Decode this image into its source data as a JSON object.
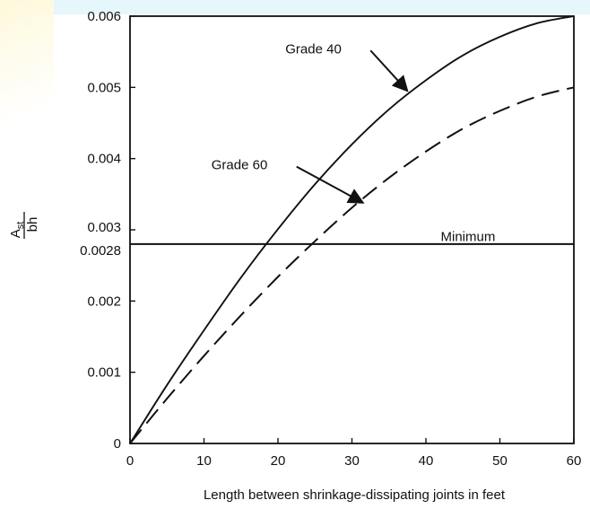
{
  "colors": {
    "line": "#111111",
    "band": "#e6f7fb",
    "watermark": "#f7e04a"
  },
  "chart_data": {
    "type": "line",
    "xlabel": "Length between shrinkage-dissipating joints in feet",
    "ylabel_numerator": "A",
    "ylabel_numerator_sub": "st",
    "ylabel_denominator": "bh",
    "xlim": [
      0,
      60
    ],
    "ylim": [
      0,
      0.006
    ],
    "x_ticks": [
      0,
      10,
      20,
      30,
      40,
      50,
      60
    ],
    "x_tick_labels": [
      "0",
      "10",
      "20",
      "30",
      "40",
      "50",
      "60"
    ],
    "y_ticks": [
      0,
      0.001,
      0.002,
      0.0028,
      0.003,
      0.004,
      0.005,
      0.006
    ],
    "y_tick_labels": [
      "0",
      "0.001",
      "0.002",
      "0.0028",
      "0.003",
      "0.004",
      "0.005",
      "0.006"
    ],
    "grid": false,
    "series": [
      {
        "name": "Grade 40",
        "style": "solid",
        "x": [
          0,
          5,
          10,
          15,
          20,
          25,
          30,
          35,
          40,
          45,
          50,
          55,
          60
        ],
        "y": [
          0,
          0.00082,
          0.00159,
          0.00233,
          0.00301,
          0.00364,
          0.0042,
          0.00469,
          0.0051,
          0.00545,
          0.00571,
          0.0059,
          0.006
        ]
      },
      {
        "name": "Grade 60",
        "style": "dashed",
        "x": [
          0,
          5,
          10,
          15,
          20,
          25,
          30,
          35,
          40,
          45,
          50,
          55,
          60
        ],
        "y": [
          0,
          0.00063,
          0.00123,
          0.0018,
          0.00234,
          0.00284,
          0.00331,
          0.00373,
          0.0041,
          0.00442,
          0.00467,
          0.00487,
          0.005
        ]
      },
      {
        "name": "Minimum",
        "style": "solid",
        "x": [
          0,
          60
        ],
        "y": [
          0.0028,
          0.0028
        ]
      }
    ],
    "annotations": [
      {
        "text": "Grade 40",
        "x": 21,
        "y": 0.00548,
        "arrow_to": [
          37.5,
          0.00495
        ]
      },
      {
        "text": "Grade 60",
        "x": 11,
        "y": 0.00385,
        "arrow_to": [
          31.5,
          0.00338
        ]
      },
      {
        "text": "Minimum",
        "x": 42,
        "y": 0.00284
      }
    ]
  }
}
